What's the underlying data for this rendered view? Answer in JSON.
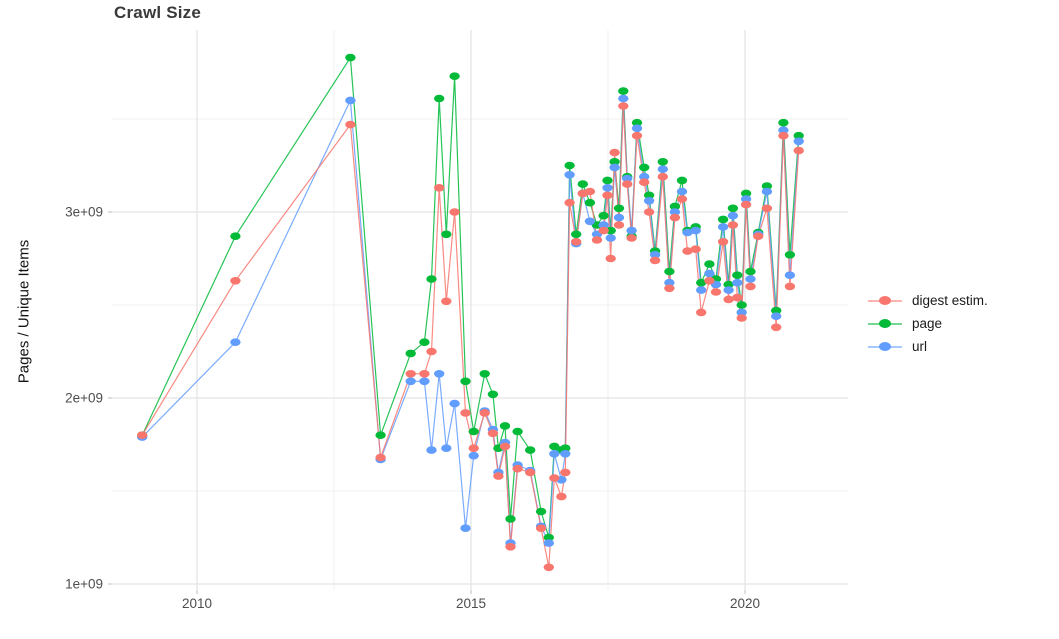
{
  "window": {
    "background": "#ffffff"
  },
  "chart_data": {
    "type": "line",
    "title": "Crawl Size",
    "xlabel": "",
    "ylabel": "Pages / Unique Items",
    "legend_position": "right",
    "grid": true,
    "x_unit": "year",
    "y_unit": "count (values in billions, axis shown as 1e+09 notation)",
    "xlim": [
      2008.45,
      2021.88
    ],
    "ylim": [
      0.96,
      3.98
    ],
    "x_ticks": [
      {
        "label": "2010",
        "value": 2010
      },
      {
        "label": "2015",
        "value": 2015
      },
      {
        "label": "2020",
        "value": 2020
      }
    ],
    "x_minor_ticks": [
      2012.5,
      2017.5
    ],
    "y_ticks": [
      {
        "label": "1e+09",
        "value": 1
      },
      {
        "label": "2e+09",
        "value": 2
      },
      {
        "label": "3e+09",
        "value": 3
      }
    ],
    "y_minor_ticks": [
      1.5,
      2.5,
      3.5
    ],
    "x": [
      2009.0,
      2010.7,
      2012.8,
      2013.35,
      2013.9,
      2014.15,
      2014.28,
      2014.42,
      2014.55,
      2014.7,
      2014.9,
      2015.05,
      2015.25,
      2015.4,
      2015.5,
      2015.62,
      2015.72,
      2015.85,
      2016.08,
      2016.28,
      2016.42,
      2016.52,
      2016.65,
      2016.72,
      2016.8,
      2016.92,
      2017.04,
      2017.17,
      2017.3,
      2017.42,
      2017.49,
      2017.55,
      2017.62,
      2017.7,
      2017.78,
      2017.85,
      2017.93,
      2018.03,
      2018.16,
      2018.25,
      2018.36,
      2018.5,
      2018.62,
      2018.72,
      2018.85,
      2018.95,
      2019.1,
      2019.2,
      2019.35,
      2019.47,
      2019.6,
      2019.7,
      2019.78,
      2019.86,
      2019.94,
      2020.02,
      2020.1,
      2020.24,
      2020.4,
      2020.57,
      2020.7,
      2020.82,
      2020.98
    ],
    "series": [
      {
        "name": "digest estim.",
        "color": "#F8766D",
        "values": [
          1.8,
          2.63,
          3.47,
          1.68,
          2.13,
          2.13,
          2.25,
          3.13,
          2.52,
          3.0,
          1.92,
          1.73,
          1.92,
          1.81,
          1.58,
          1.74,
          1.2,
          1.62,
          1.6,
          1.3,
          1.09,
          1.57,
          1.47,
          1.6,
          3.05,
          2.84,
          3.1,
          3.11,
          2.85,
          2.9,
          3.09,
          2.75,
          3.32,
          2.93,
          3.57,
          3.15,
          2.86,
          3.41,
          3.16,
          3.0,
          2.74,
          3.19,
          2.59,
          2.97,
          3.07,
          2.79,
          2.8,
          2.46,
          2.63,
          2.57,
          2.84,
          2.53,
          2.93,
          2.54,
          2.43,
          3.04,
          2.6,
          2.87,
          3.02,
          2.38,
          3.41,
          2.6,
          3.33
        ]
      },
      {
        "name": "page",
        "color": "#00BA38",
        "values": [
          1.8,
          2.87,
          3.83,
          1.8,
          2.24,
          2.3,
          2.64,
          3.61,
          2.88,
          3.73,
          2.09,
          1.82,
          2.13,
          2.02,
          1.73,
          1.85,
          1.35,
          1.82,
          1.72,
          1.39,
          1.25,
          1.74,
          1.72,
          1.73,
          3.25,
          2.88,
          3.15,
          3.05,
          2.93,
          2.98,
          3.17,
          2.9,
          3.27,
          3.02,
          3.65,
          3.19,
          2.87,
          3.48,
          3.24,
          3.09,
          2.79,
          3.27,
          2.68,
          3.03,
          3.17,
          2.9,
          2.92,
          2.62,
          2.72,
          2.64,
          2.96,
          2.61,
          3.02,
          2.66,
          2.5,
          3.1,
          2.68,
          2.89,
          3.14,
          2.47,
          3.48,
          2.77,
          3.41
        ]
      },
      {
        "name": "url",
        "color": "#619CFF",
        "values": [
          1.79,
          2.3,
          3.6,
          1.67,
          2.09,
          2.09,
          1.72,
          2.13,
          1.73,
          1.97,
          1.3,
          1.69,
          1.93,
          1.83,
          1.6,
          1.76,
          1.22,
          1.64,
          1.61,
          1.31,
          1.22,
          1.7,
          1.56,
          1.7,
          3.2,
          2.83,
          3.1,
          2.95,
          2.88,
          2.93,
          3.13,
          2.86,
          3.24,
          2.97,
          3.61,
          3.18,
          2.9,
          3.45,
          3.19,
          3.06,
          2.77,
          3.23,
          2.62,
          3.0,
          3.11,
          2.89,
          2.9,
          2.58,
          2.67,
          2.61,
          2.92,
          2.58,
          2.98,
          2.62,
          2.46,
          3.07,
          2.64,
          2.88,
          3.11,
          2.44,
          3.44,
          2.66,
          3.38
        ]
      }
    ],
    "style": {
      "grid_major_color": "#e4e4e4",
      "grid_minor_color": "#f0f0f0",
      "tick_label_color": "#4d4d4d",
      "axis_tick_color": "#c9c9c9",
      "panel_background": "#ffffff"
    }
  }
}
